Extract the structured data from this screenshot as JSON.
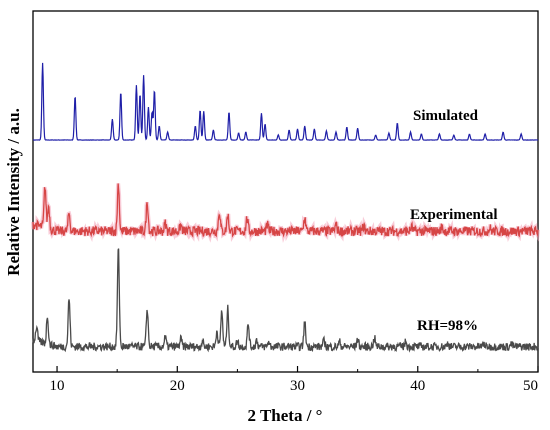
{
  "chart_data": {
    "type": "line",
    "xlabel": "2 Theta / °",
    "ylabel": "Relative Intensity / a.u.",
    "xlim": [
      8,
      50
    ],
    "x_ticks": [
      10,
      20,
      30,
      40,
      50
    ],
    "grid": false,
    "legend": "none",
    "series": [
      {
        "name": "Simulated",
        "color": "#1f1fa8",
        "baseline": 1.0,
        "x": [
          8.8,
          11.5,
          14.6,
          15.3,
          16.6,
          16.9,
          17.2,
          17.6,
          17.9,
          18.1,
          18.5,
          19.2,
          21.5,
          21.9,
          22.2,
          23.0,
          24.3,
          25.1,
          25.7,
          27.0,
          27.3,
          28.4,
          29.3,
          30.0,
          30.6,
          31.4,
          32.4,
          33.2,
          34.1,
          35.0,
          36.5,
          37.6,
          38.3,
          39.4,
          40.3,
          41.8,
          43.0,
          44.3,
          45.6,
          47.1,
          48.6
        ],
        "height": [
          7.7,
          4.4,
          2.1,
          4.8,
          5.5,
          4.6,
          6.5,
          3.3,
          2.8,
          5.0,
          1.4,
          0.8,
          1.4,
          3.0,
          2.9,
          1.0,
          2.8,
          0.7,
          0.8,
          2.7,
          1.6,
          0.5,
          1.0,
          1.1,
          1.4,
          1.1,
          0.9,
          0.8,
          1.3,
          1.2,
          0.5,
          0.7,
          1.7,
          0.8,
          0.6,
          0.6,
          0.5,
          0.6,
          0.6,
          0.8,
          0.6
        ]
      },
      {
        "name": "Experimental",
        "color": "#d64545",
        "baseline": 1.4,
        "x": [
          9.0,
          9.3,
          11.0,
          15.1,
          17.5,
          19.0,
          20.3,
          23.5,
          24.2,
          25.8,
          27.5,
          30.6,
          33.2,
          35.5,
          39.5,
          42.0,
          46.0
        ],
        "height": [
          4.2,
          2.3,
          1.8,
          4.8,
          3.0,
          0.8,
          0.6,
          2.0,
          1.6,
          1.3,
          0.6,
          1.4,
          0.6,
          0.5,
          0.4,
          0.4,
          0.3
        ]
      },
      {
        "name": "RH=98%",
        "color": "#4a4a4a",
        "baseline": 0.7,
        "x": [
          8.3,
          9.2,
          11.0,
          15.1,
          17.5,
          19.0,
          20.3,
          22.1,
          23.3,
          23.7,
          24.2,
          25.0,
          25.9,
          26.6,
          27.6,
          30.6,
          32.2,
          33.5,
          35.0,
          36.4,
          39.0,
          42.5,
          45.5,
          47.8
        ],
        "height": [
          1.5,
          3.0,
          5.1,
          10.3,
          4.0,
          1.0,
          0.8,
          0.6,
          1.7,
          3.8,
          4.0,
          0.6,
          2.4,
          0.7,
          0.5,
          2.6,
          0.6,
          0.5,
          0.8,
          0.9,
          0.5,
          0.4,
          0.3,
          0.3
        ]
      }
    ]
  }
}
